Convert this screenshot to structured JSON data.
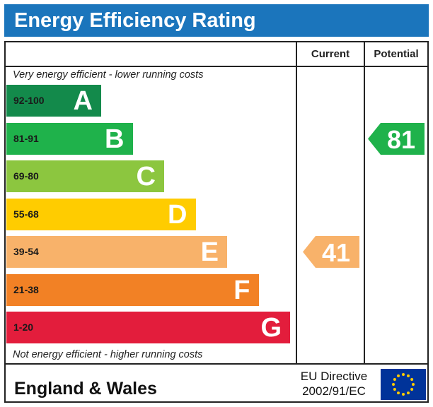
{
  "title": "Energy Efficiency Rating",
  "headers": {
    "current": "Current",
    "potential": "Potential"
  },
  "notes": {
    "top": "Very energy efficient - lower running costs",
    "bottom": "Not energy efficient - higher running costs"
  },
  "chart_data": {
    "type": "bar",
    "categories": [
      "A",
      "B",
      "C",
      "D",
      "E",
      "F",
      "G"
    ],
    "bands": [
      {
        "letter": "A",
        "range": "92-100",
        "color": "#138a4b"
      },
      {
        "letter": "B",
        "range": "81-91",
        "color": "#1fb24b"
      },
      {
        "letter": "C",
        "range": "69-80",
        "color": "#8cc63f"
      },
      {
        "letter": "D",
        "range": "55-68",
        "color": "#ffcc00"
      },
      {
        "letter": "E",
        "range": "39-54",
        "color": "#f8b26a"
      },
      {
        "letter": "F",
        "range": "21-38",
        "color": "#f28125"
      },
      {
        "letter": "G",
        "range": "1-20",
        "color": "#e31d3c"
      }
    ],
    "current": {
      "value": 41,
      "band": "E",
      "color": "#f8b26a"
    },
    "potential": {
      "value": 81,
      "band": "B",
      "color": "#1fb24b"
    }
  },
  "footer": {
    "region": "England & Wales",
    "directive_line1": "EU Directive",
    "directive_line2": "2002/91/EC",
    "flag_colors": {
      "field": "#003399",
      "stars": "#ffcc00"
    }
  }
}
